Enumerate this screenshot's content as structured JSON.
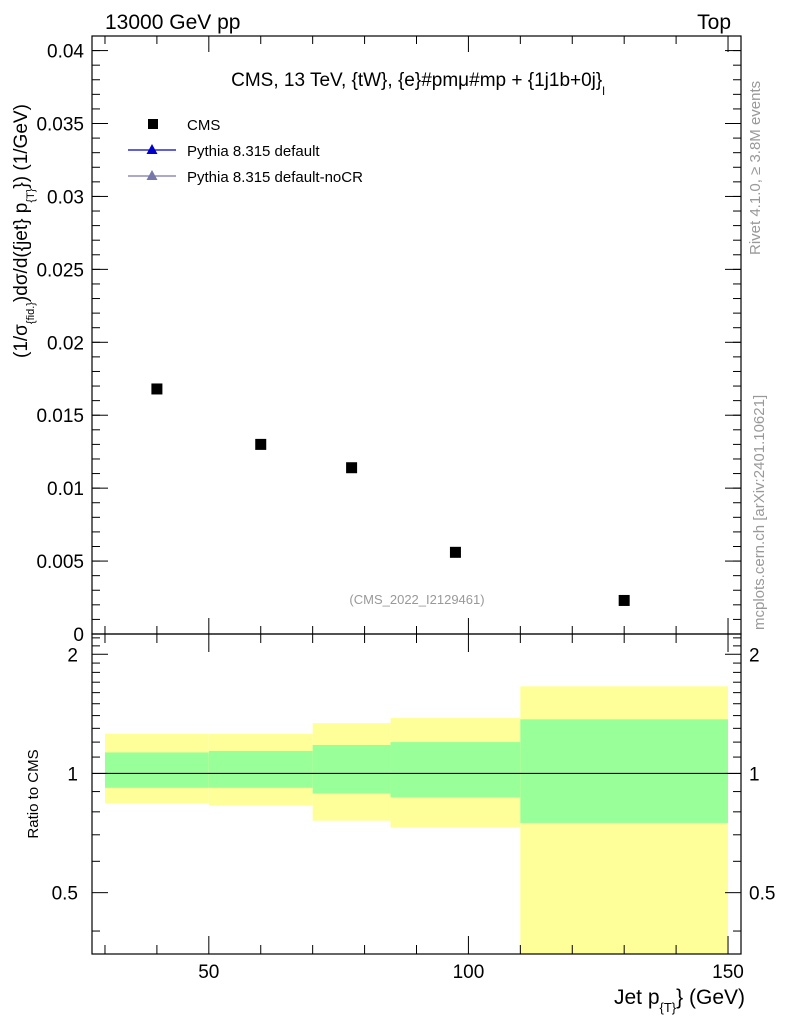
{
  "header": {
    "left": "13000 GeV pp",
    "right": "Top"
  },
  "side_labels": {
    "rivet": "Rivet 4.1.0, ≥ 3.8M events",
    "mcplots": "mcplots.cern.ch [arXiv:2401.10621]"
  },
  "colors": {
    "cms": "#000000",
    "pythia_default": "#0000cc",
    "pythia_nocr": "#7777aa",
    "band_inner": "#99ff99",
    "band_outer": "#ffff99",
    "watermark": "#999999"
  },
  "chart_data": [
    {
      "type": "scatter",
      "title": "CMS, 13 TeV, {tW}, {e}#pmμ#mp + {1j1b+0j}",
      "title_subscript": "l",
      "ylabel": "(1/σ_{fid.})dσ/d({jet} p_{T}) (1/GeV)",
      "ylabel_parts": {
        "a": "(1/σ",
        "a_sub": "{fid.}",
        "b": ")dσ/d({jet} p",
        "b_sub": "{T}",
        "c": "}) (1/GeV)"
      },
      "watermark": "(CMS_2022_I2129461)",
      "xlim": [
        27.5,
        152.5
      ],
      "ylim": [
        0,
        0.041
      ],
      "yticks": [
        0,
        0.005,
        0.01,
        0.015,
        0.02,
        0.025,
        0.03,
        0.035,
        0.04
      ],
      "ytick_labels": [
        "0",
        "0.005",
        "0.01",
        "0.015",
        "0.02",
        "0.025",
        "0.03",
        "0.035",
        "0.04"
      ],
      "legend": [
        "CMS",
        "Pythia 8.315 default",
        "Pythia 8.315 default-noCR"
      ],
      "legend_position": "top-left",
      "series": [
        {
          "name": "CMS",
          "x": [
            40,
            60,
            77.5,
            97.5,
            130
          ],
          "y": [
            0.0168,
            0.013,
            0.0114,
            0.0056,
            0.0023
          ]
        }
      ]
    },
    {
      "type": "area",
      "ylabel": "Ratio to CMS",
      "xlabel": "Jet p",
      "xlabel_sub": "{T}",
      "xlabel_unit": "} (GeV)",
      "xlim": [
        27.5,
        152.5
      ],
      "ylim": [
        0.35,
        2.25
      ],
      "xticks": [
        50,
        100,
        150
      ],
      "xtick_labels": [
        "50",
        "100",
        "150"
      ],
      "yticks": [
        0.5,
        1,
        2
      ],
      "ytick_labels": [
        "0.5",
        "1",
        "2"
      ],
      "bins": [
        {
          "x0": 30,
          "x1": 50,
          "inner": [
            0.92,
            1.13
          ],
          "outer": [
            0.84,
            1.26
          ]
        },
        {
          "x0": 50,
          "x1": 70,
          "inner": [
            0.92,
            1.14
          ],
          "outer": [
            0.83,
            1.26
          ]
        },
        {
          "x0": 70,
          "x1": 85,
          "inner": [
            0.89,
            1.18
          ],
          "outer": [
            0.76,
            1.34
          ]
        },
        {
          "x0": 85,
          "x1": 110,
          "inner": [
            0.87,
            1.2
          ],
          "outer": [
            0.73,
            1.38
          ]
        },
        {
          "x0": 110,
          "x1": 150,
          "inner": [
            0.75,
            1.37
          ],
          "outer": [
            0.3,
            1.66
          ]
        }
      ],
      "reference_line": 1
    }
  ]
}
